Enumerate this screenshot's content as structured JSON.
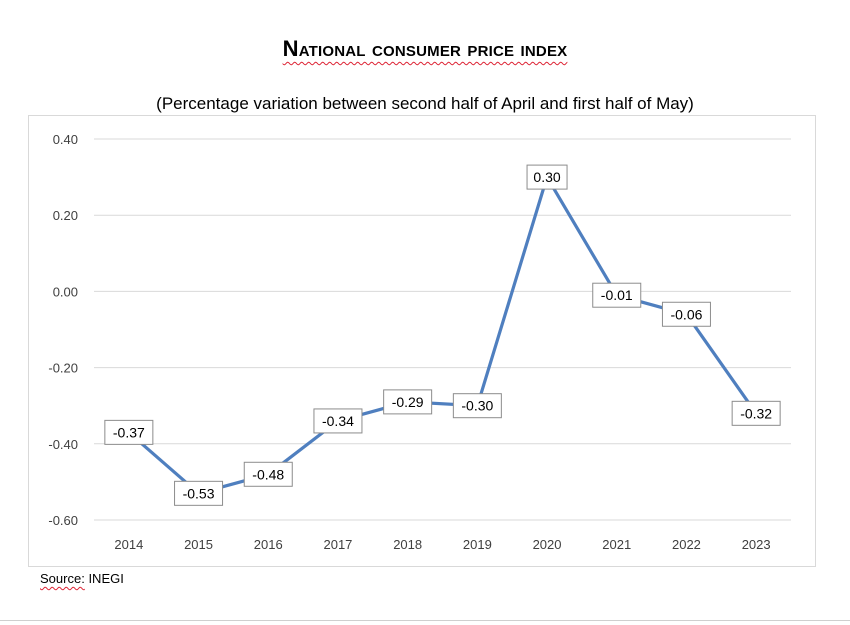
{
  "header": {
    "title": "National consumer price index",
    "subtitle": "(Percentage variation between second half of April and first half of May)"
  },
  "footer": {
    "source_prefix": "Source:",
    "source_name": "INEGI"
  },
  "colors": {
    "series_line": "#4f7fbf",
    "gridline": "#d9d9d9",
    "axis_text": "#404040",
    "label_border": "#8c8c8c"
  },
  "chart_data": {
    "type": "line",
    "title": "National consumer price index",
    "subtitle": "(Percentage variation between second half of April and first half of May)",
    "xlabel": "",
    "ylabel": "",
    "categories": [
      "2014",
      "2015",
      "2016",
      "2017",
      "2018",
      "2019",
      "2020",
      "2021",
      "2022",
      "2023"
    ],
    "series": [
      {
        "values": [
          -0.37,
          -0.53,
          -0.48,
          -0.34,
          -0.29,
          -0.3,
          0.3,
          -0.01,
          -0.06,
          -0.32
        ],
        "data_labels": [
          "-0.37",
          "-0.53",
          "-0.48",
          "-0.34",
          "-0.29",
          "-0.30",
          "0.30",
          "-0.01",
          "-0.06",
          "-0.32"
        ]
      }
    ],
    "ylim": [
      -0.6,
      0.4
    ],
    "yticks": [
      0.4,
      0.2,
      0.0,
      -0.2,
      -0.4,
      -0.6
    ],
    "ytick_labels": [
      "0.40",
      "0.20",
      "0.00",
      "-0.20",
      "-0.40",
      "-0.60"
    ],
    "grid": true,
    "legend": "none"
  }
}
